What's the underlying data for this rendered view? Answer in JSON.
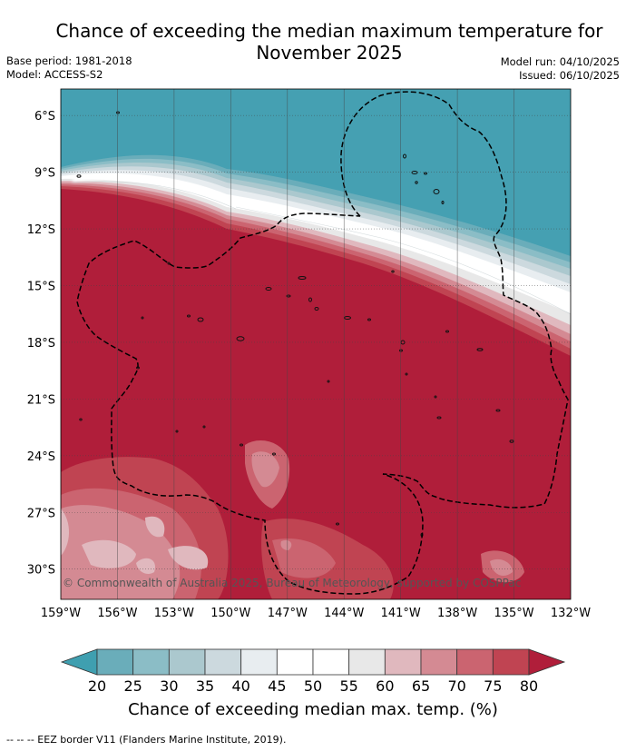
{
  "title": {
    "line1": "Chance of exceeding the median maximum temperature for",
    "line2": "November 2025"
  },
  "meta": {
    "base_period": "Base period: 1981-2018",
    "model": "Model: ACCESS-S2",
    "model_run": "Model run: 04/10/2025",
    "issued": "Issued: 06/10/2025"
  },
  "map": {
    "lon_ticks": [
      "159°W",
      "156°W",
      "153°W",
      "150°W",
      "147°W",
      "144°W",
      "141°W",
      "138°W",
      "135°W",
      "132°W"
    ],
    "lat_ticks": [
      "6°S",
      "9°S",
      "12°S",
      "15°S",
      "18°S",
      "21°S",
      "24°S",
      "27°S",
      "30°S"
    ],
    "lon_range": [
      -159,
      -132
    ],
    "lat_range": [
      -31.6,
      -4.6
    ],
    "copyright": "© Commonwealth of Australia 2025, Bureau of Meteorology, supported by COSPPac"
  },
  "colorbar": {
    "ticks": [
      "20",
      "25",
      "30",
      "35",
      "40",
      "45",
      "50",
      "55",
      "60",
      "65",
      "70",
      "75",
      "80"
    ],
    "colors": [
      "#6aadba",
      "#8bbdc6",
      "#abc8ce",
      "#ccd9de",
      "#e8edf0",
      "#ffffff",
      "#ffffff",
      "#e8e8e8",
      "#e0b8be",
      "#d48a93",
      "#cb6470",
      "#c04452"
    ],
    "low_color": "#3f9fb0",
    "high_color": "#b01e3a",
    "label": "Chance of exceeding median max. temp. (%)"
  },
  "footnote": "--  --  -- EEZ border V11 (Flanders Marine Institute, 2019)."
}
